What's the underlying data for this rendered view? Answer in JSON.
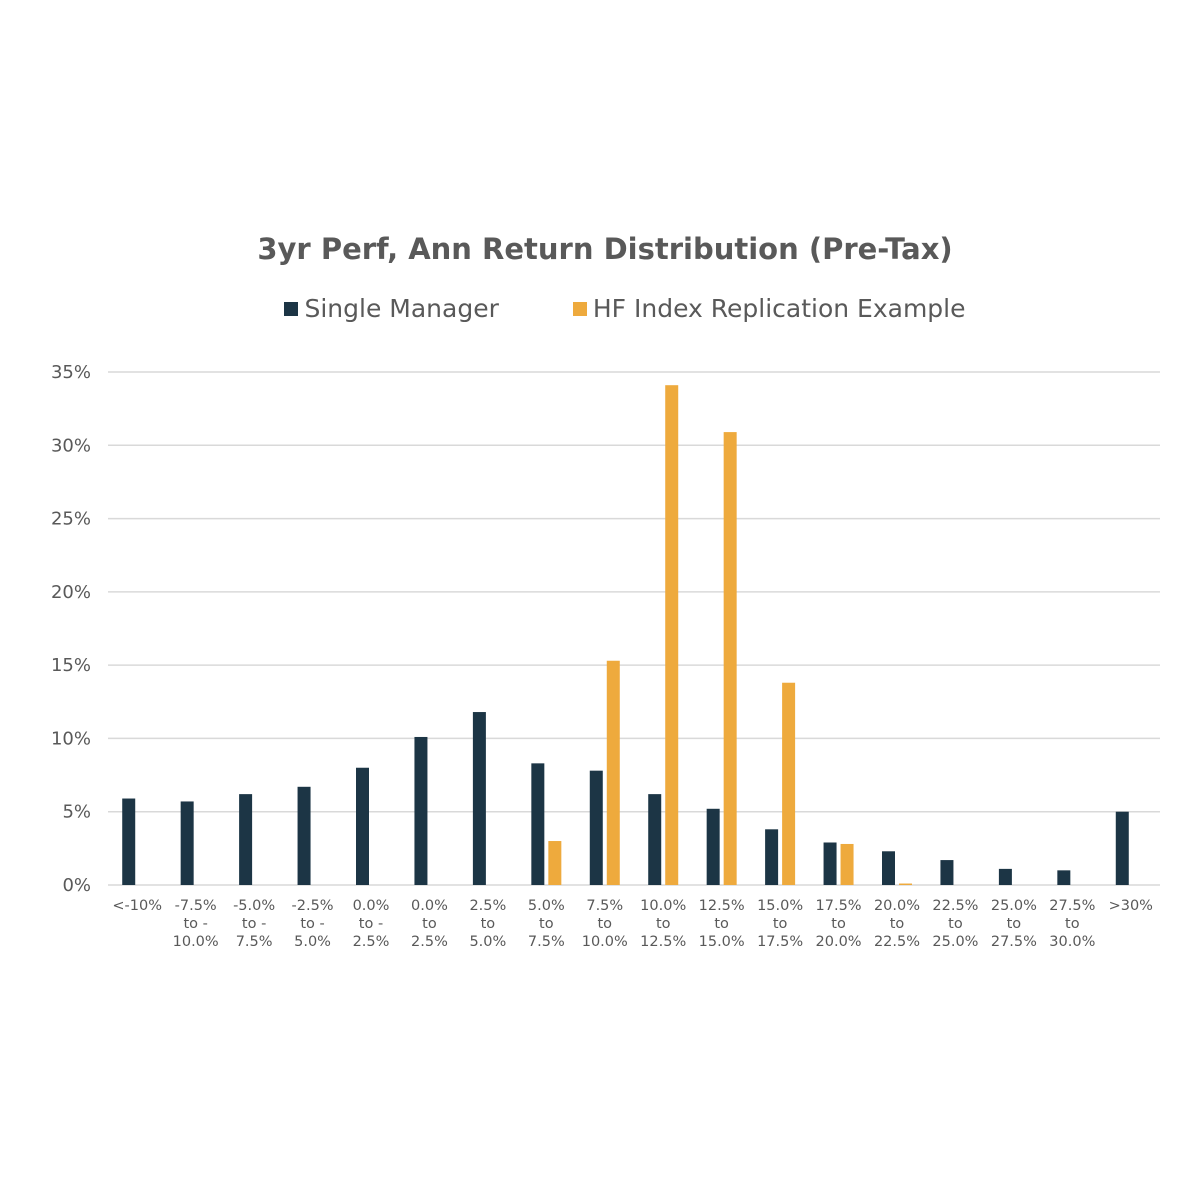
{
  "chart_data": {
    "type": "bar",
    "title": "3yr Perf, Ann Return Distribution (Pre-Tax)",
    "categories": [
      [
        "<-10%"
      ],
      [
        "-7.5%",
        "to -",
        "10.0%"
      ],
      [
        "-5.0%",
        "to -",
        "7.5%"
      ],
      [
        "-2.5%",
        "to -",
        "5.0%"
      ],
      [
        "0.0%",
        "to -",
        "2.5%"
      ],
      [
        "0.0%",
        "to",
        "2.5%"
      ],
      [
        "2.5%",
        "to",
        "5.0%"
      ],
      [
        "5.0%",
        "to",
        "7.5%"
      ],
      [
        "7.5%",
        "to",
        "10.0%"
      ],
      [
        "10.0%",
        "to",
        "12.5%"
      ],
      [
        "12.5%",
        "to",
        "15.0%"
      ],
      [
        "15.0%",
        "to",
        "17.5%"
      ],
      [
        "17.5%",
        "to",
        "20.0%"
      ],
      [
        "20.0%",
        "to",
        "22.5%"
      ],
      [
        "22.5%",
        "to",
        "25.0%"
      ],
      [
        "25.0%",
        "to",
        "27.5%"
      ],
      [
        "27.5%",
        "to",
        "30.0%"
      ],
      [
        ">30%"
      ]
    ],
    "series": [
      {
        "name": "Single Manager",
        "color": "#1c3545",
        "values": [
          5.9,
          5.7,
          6.2,
          6.7,
          8.0,
          10.1,
          11.8,
          8.3,
          7.8,
          6.2,
          5.2,
          3.8,
          2.9,
          2.3,
          1.7,
          1.1,
          1.0,
          5.0
        ]
      },
      {
        "name": "HF Index Replication Example",
        "color": "#eeaa3d",
        "values": [
          0,
          0,
          0,
          0,
          0,
          0,
          0,
          3.0,
          15.3,
          34.1,
          30.9,
          13.8,
          2.8,
          0.1,
          0,
          0,
          0,
          0
        ]
      }
    ],
    "yticks": [
      "0%",
      "5%",
      "10%",
      "15%",
      "20%",
      "25%",
      "30%",
      "35%"
    ],
    "ylim": [
      0,
      35
    ],
    "ytick_step": 5,
    "grid": true,
    "legend_position": "top"
  }
}
